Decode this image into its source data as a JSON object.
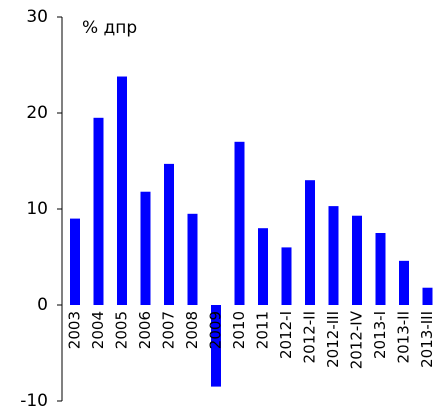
{
  "chart_data": {
    "type": "bar",
    "y_label": "% дпр",
    "categories": [
      "2003",
      "2004",
      "2005",
      "2006",
      "2007",
      "2008",
      "2009",
      "2010",
      "2011",
      "2012-I",
      "2012-II",
      "2012-III",
      "2012-IV",
      "2013-I",
      "2013-II",
      "2013-III"
    ],
    "values": [
      9.0,
      19.5,
      23.8,
      11.8,
      14.7,
      9.5,
      -8.5,
      17.0,
      8.0,
      6.0,
      13.0,
      10.3,
      9.3,
      7.5,
      4.6,
      1.8
    ],
    "color": "#0000ff",
    "ylim": [
      -10,
      30
    ],
    "yticks": [
      -10,
      0,
      10,
      20,
      30
    ],
    "grid": false
  }
}
